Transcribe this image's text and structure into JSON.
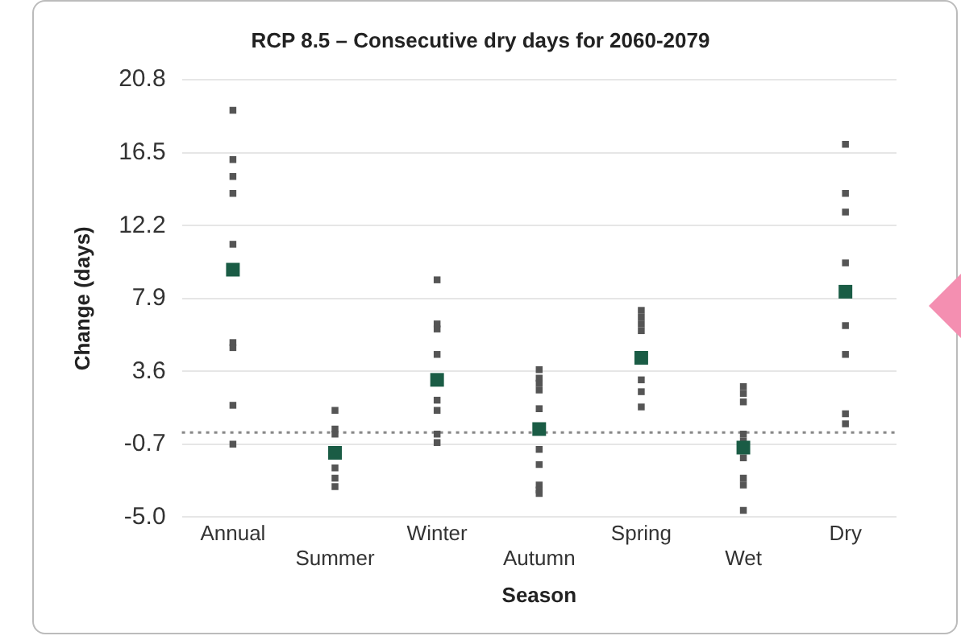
{
  "chart_data": {
    "type": "scatter",
    "title": "RCP 8.5 – Consecutive dry days for 2060-2079",
    "xlabel": "Season",
    "ylabel": "Change (days)",
    "categories": [
      "Annual",
      "Summer",
      "Winter",
      "Autumn",
      "Spring",
      "Wet",
      "Dry"
    ],
    "series": [
      {
        "color": "#555555",
        "marker": "square",
        "x": [
          "Annual",
          "Annual",
          "Annual",
          "Annual",
          "Annual",
          "Annual",
          "Annual",
          "Annual",
          "Annual",
          "Summer",
          "Summer",
          "Summer",
          "Summer",
          "Summer",
          "Summer",
          "Winter",
          "Winter",
          "Winter",
          "Winter",
          "Winter",
          "Winter",
          "Winter",
          "Winter",
          "Autumn",
          "Autumn",
          "Autumn",
          "Autumn",
          "Autumn",
          "Autumn",
          "Autumn",
          "Autumn",
          "Autumn",
          "Autumn",
          "Spring",
          "Spring",
          "Spring",
          "Spring",
          "Spring",
          "Spring",
          "Spring",
          "Wet",
          "Wet",
          "Wet",
          "Wet",
          "Wet",
          "Wet",
          "Wet",
          "Wet",
          "Wet",
          "Dry",
          "Dry",
          "Dry",
          "Dry",
          "Dry",
          "Dry",
          "Dry",
          "Dry"
        ],
        "values": [
          19.0,
          16.1,
          15.1,
          14.1,
          11.1,
          5.3,
          5.0,
          1.6,
          -0.7,
          1.3,
          0.2,
          -0.1,
          -2.1,
          -2.7,
          -3.2,
          9.0,
          6.4,
          6.1,
          4.6,
          1.9,
          1.3,
          -0.1,
          -0.6,
          3.7,
          3.2,
          2.9,
          2.5,
          1.4,
          -1.0,
          -1.9,
          -3.1,
          -3.4,
          -3.6,
          7.2,
          6.8,
          6.4,
          6.0,
          3.1,
          2.4,
          1.5,
          2.7,
          2.3,
          1.8,
          -0.1,
          -0.5,
          -1.5,
          -2.7,
          -3.1,
          -4.6,
          17.0,
          14.1,
          13.0,
          10.0,
          6.3,
          4.6,
          1.1,
          0.5
        ]
      },
      {
        "color": "#1a5c45",
        "marker": "square",
        "x": [
          "Annual",
          "Summer",
          "Winter",
          "Autumn",
          "Spring",
          "Wet",
          "Dry"
        ],
        "values": [
          9.6,
          -1.2,
          3.1,
          0.2,
          4.4,
          -0.9,
          8.3
        ]
      }
    ],
    "ylim": [
      -5.0,
      20.8
    ],
    "yticks": [
      {
        "value": -5.0,
        "label": "-5.0"
      },
      {
        "value": -0.7,
        "label": "-0.7"
      },
      {
        "value": 3.6,
        "label": "3.6"
      },
      {
        "value": 7.9,
        "label": "7.9"
      },
      {
        "value": 12.2,
        "label": "12.2"
      },
      {
        "value": 16.5,
        "label": "16.5"
      },
      {
        "value": 20.8,
        "label": "20.8"
      }
    ],
    "ref_lines": [
      {
        "axis": "y",
        "value": 0,
        "color": "#888888",
        "line_style": "dotted"
      }
    ],
    "grid": "y",
    "legend": false
  }
}
